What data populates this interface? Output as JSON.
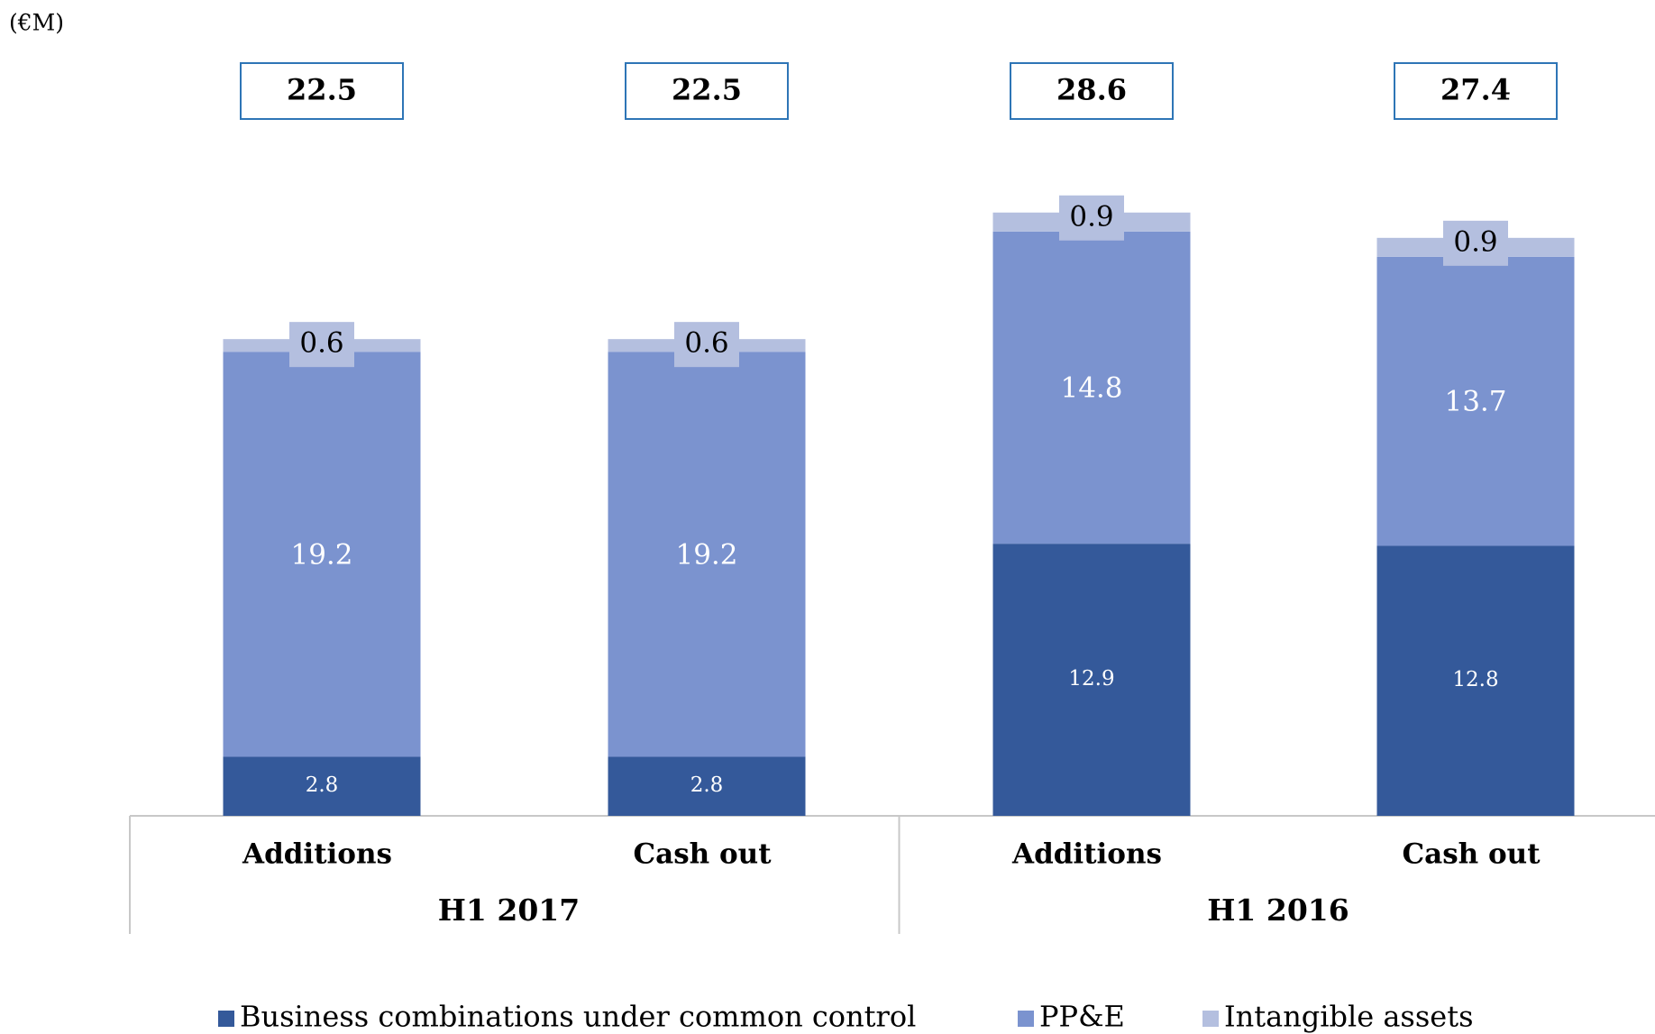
{
  "chart_data": {
    "type": "stacked-bar",
    "unit_label": "(€M)",
    "categories": [
      "Additions",
      "Cash out",
      "Additions",
      "Cash out"
    ],
    "groups": [
      {
        "name": "H1 2017",
        "size": 2
      },
      {
        "name": "H1 2016",
        "size": 2
      }
    ],
    "series": [
      {
        "name": "Business combinations under common control",
        "color": "#34599a",
        "values": [
          2.8,
          2.8,
          12.9,
          12.8
        ]
      },
      {
        "name": "PP&E",
        "color": "#7b93cf",
        "values": [
          19.2,
          19.2,
          14.8,
          13.7
        ]
      },
      {
        "name": "Intangible assets",
        "color": "#b4bfdf",
        "values": [
          0.6,
          0.6,
          0.9,
          0.9
        ]
      }
    ],
    "totals": [
      22.5,
      22.5,
      28.6,
      27.4
    ],
    "legend": "bottom"
  }
}
